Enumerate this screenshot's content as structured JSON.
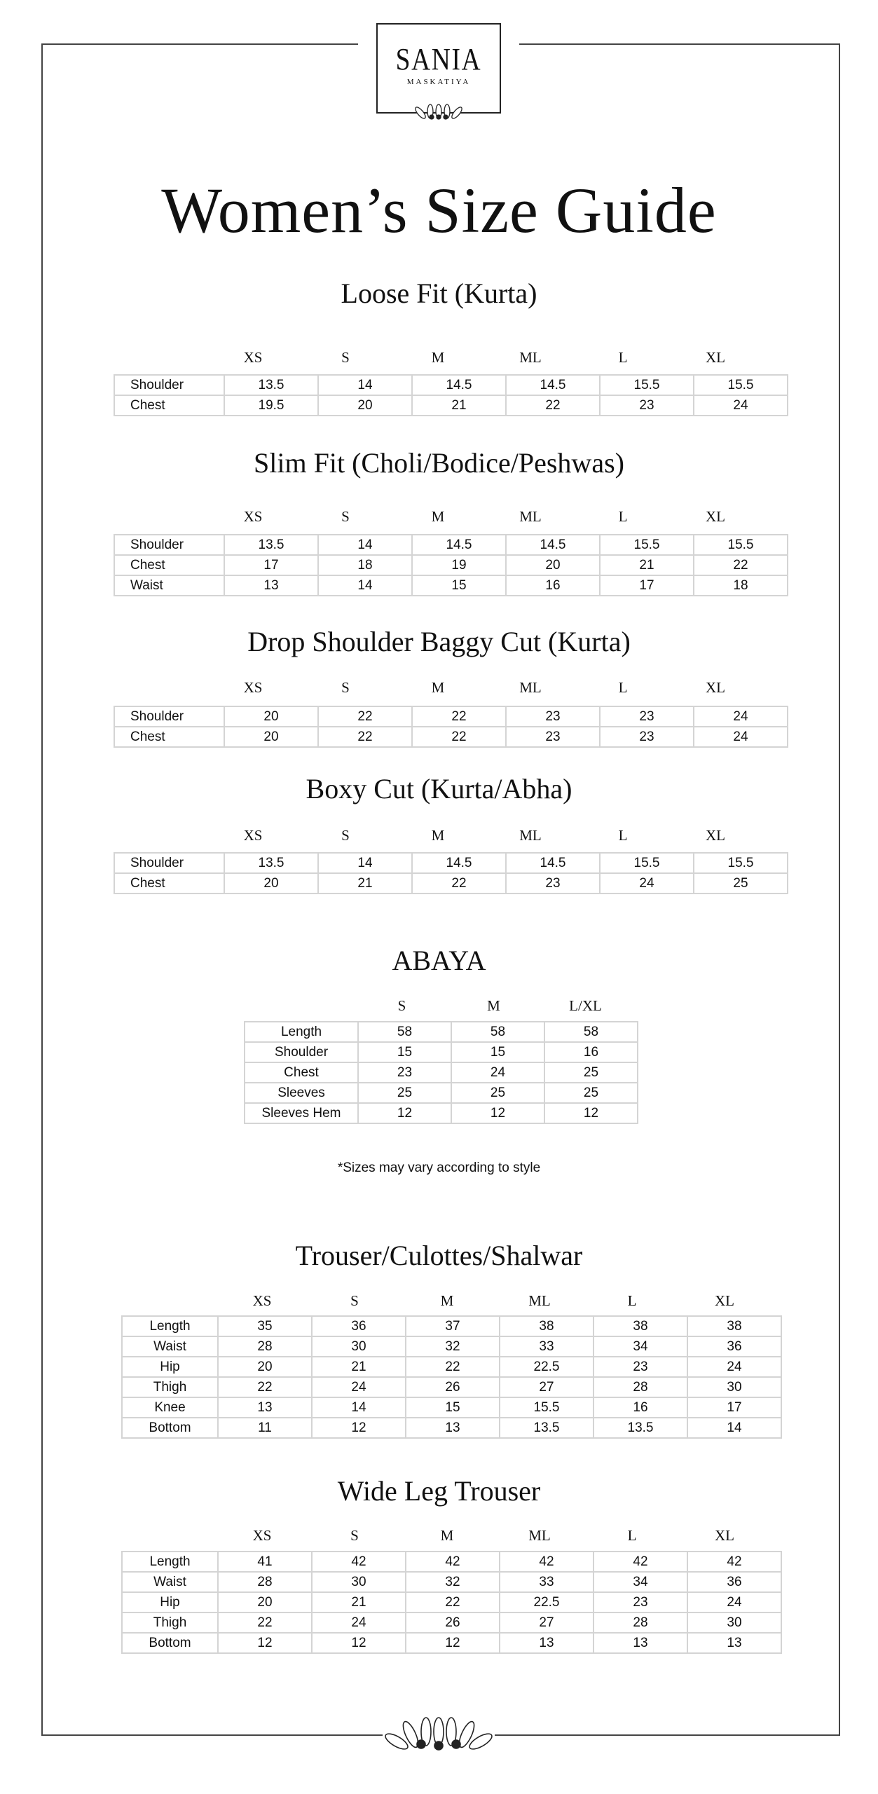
{
  "brand": {
    "name": "SANIA",
    "sub": "MASKATIYA"
  },
  "title": "Women’s Size Guide",
  "sections": [
    {
      "title": "Loose Fit (Kurta)",
      "sizes": [
        "XS",
        "S",
        "M",
        "ML",
        "L",
        "XL"
      ],
      "rows": [
        {
          "label": "Shoulder",
          "values": [
            "13.5",
            "14",
            "14.5",
            "14.5",
            "15.5",
            "15.5"
          ]
        },
        {
          "label": "Chest",
          "values": [
            "19.5",
            "20",
            "21",
            "22",
            "23",
            "24"
          ]
        }
      ]
    },
    {
      "title": "Slim Fit (Choli/Bodice/Peshwas)",
      "sizes": [
        "XS",
        "S",
        "M",
        "ML",
        "L",
        "XL"
      ],
      "rows": [
        {
          "label": "Shoulder",
          "values": [
            "13.5",
            "14",
            "14.5",
            "14.5",
            "15.5",
            "15.5"
          ]
        },
        {
          "label": "Chest",
          "values": [
            "17",
            "18",
            "19",
            "20",
            "21",
            "22"
          ]
        },
        {
          "label": "Waist",
          "values": [
            "13",
            "14",
            "15",
            "16",
            "17",
            "18"
          ]
        }
      ]
    },
    {
      "title": "Drop Shoulder Baggy Cut (Kurta)",
      "sizes": [
        "XS",
        "S",
        "M",
        "ML",
        "L",
        "XL"
      ],
      "rows": [
        {
          "label": "Shoulder",
          "values": [
            "20",
            "22",
            "22",
            "23",
            "23",
            "24"
          ]
        },
        {
          "label": "Chest",
          "values": [
            "20",
            "22",
            "22",
            "23",
            "23",
            "24"
          ]
        }
      ]
    },
    {
      "title": "Boxy Cut (Kurta/Abha)",
      "sizes": [
        "XS",
        "S",
        "M",
        "ML",
        "L",
        "XL"
      ],
      "rows": [
        {
          "label": "Shoulder",
          "values": [
            "13.5",
            "14",
            "14.5",
            "14.5",
            "15.5",
            "15.5"
          ]
        },
        {
          "label": "Chest",
          "values": [
            "20",
            "21",
            "22",
            "23",
            "24",
            "25"
          ]
        }
      ]
    },
    {
      "title": "ABAYA",
      "sizes": [
        "S",
        "M",
        "L/XL"
      ],
      "rows": [
        {
          "label": "Length",
          "values": [
            "58",
            "58",
            "58"
          ]
        },
        {
          "label": "Shoulder",
          "values": [
            "15",
            "15",
            "16"
          ]
        },
        {
          "label": "Chest",
          "values": [
            "23",
            "24",
            "25"
          ]
        },
        {
          "label": "Sleeves",
          "values": [
            "25",
            "25",
            "25"
          ]
        },
        {
          "label": "Sleeves Hem",
          "values": [
            "12",
            "12",
            "12"
          ]
        }
      ]
    },
    {
      "title": "Trouser/Culottes/Shalwar",
      "sizes": [
        "XS",
        "S",
        "M",
        "ML",
        "L",
        "XL"
      ],
      "rows": [
        {
          "label": "Length",
          "values": [
            "35",
            "36",
            "37",
            "38",
            "38",
            "38"
          ]
        },
        {
          "label": "Waist",
          "values": [
            "28",
            "30",
            "32",
            "33",
            "34",
            "36"
          ]
        },
        {
          "label": "Hip",
          "values": [
            "20",
            "21",
            "22",
            "22.5",
            "23",
            "24"
          ]
        },
        {
          "label": "Thigh",
          "values": [
            "22",
            "24",
            "26",
            "27",
            "28",
            "30"
          ]
        },
        {
          "label": "Knee",
          "values": [
            "13",
            "14",
            "15",
            "15.5",
            "16",
            "17"
          ]
        },
        {
          "label": "Bottom",
          "values": [
            "11",
            "12",
            "13",
            "13.5",
            "13.5",
            "14"
          ]
        }
      ]
    },
    {
      "title": "Wide Leg Trouser",
      "sizes": [
        "XS",
        "S",
        "M",
        "ML",
        "L",
        "XL"
      ],
      "rows": [
        {
          "label": "Length",
          "values": [
            "41",
            "42",
            "42",
            "42",
            "42",
            "42"
          ]
        },
        {
          "label": "Waist",
          "values": [
            "28",
            "30",
            "32",
            "33",
            "34",
            "36"
          ]
        },
        {
          "label": "Hip",
          "values": [
            "20",
            "21",
            "22",
            "22.5",
            "23",
            "24"
          ]
        },
        {
          "label": "Thigh",
          "values": [
            "22",
            "24",
            "26",
            "27",
            "28",
            "30"
          ]
        },
        {
          "label": "Bottom",
          "values": [
            "12",
            "12",
            "12",
            "13",
            "13",
            "13"
          ]
        }
      ]
    }
  ],
  "note": "*Sizes may vary according to style"
}
